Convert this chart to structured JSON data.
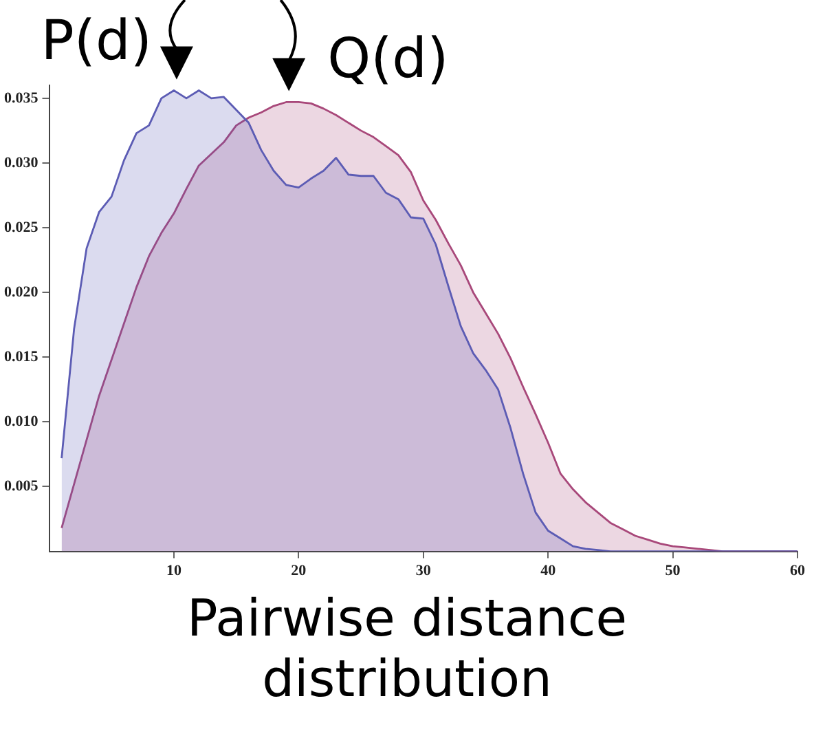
{
  "chart_data": {
    "type": "area",
    "xlabel": "Pairwise distance distribution",
    "x": [
      1,
      2,
      3,
      4,
      5,
      6,
      7,
      8,
      9,
      10,
      11,
      12,
      13,
      14,
      15,
      16,
      17,
      18,
      19,
      20,
      21,
      22,
      23,
      24,
      25,
      26,
      27,
      28,
      29,
      30,
      31,
      32,
      33,
      34,
      35,
      36,
      37,
      38,
      39,
      40,
      41,
      42,
      43,
      44,
      45,
      46,
      47,
      48,
      49,
      50,
      51,
      52,
      53,
      54,
      55,
      56,
      57,
      58,
      59,
      60
    ],
    "series": [
      {
        "name": "P(d)",
        "color": "#5c5cb4",
        "values": [
          0.0072,
          0.0172,
          0.0234,
          0.0262,
          0.0274,
          0.0302,
          0.0323,
          0.0329,
          0.035,
          0.0356,
          0.035,
          0.0356,
          0.035,
          0.0351,
          0.0341,
          0.0331,
          0.031,
          0.0294,
          0.0283,
          0.0281,
          0.0288,
          0.0294,
          0.0304,
          0.0291,
          0.029,
          0.029,
          0.0277,
          0.0272,
          0.0258,
          0.0257,
          0.0237,
          0.0205,
          0.0174,
          0.0153,
          0.014,
          0.0125,
          0.0095,
          0.006,
          0.003,
          0.0016,
          0.001,
          0.0004,
          0.0002,
          0.0001,
          0,
          0,
          0,
          0,
          0,
          0,
          0,
          0,
          0,
          0,
          0,
          0,
          0,
          0,
          0,
          0
        ]
      },
      {
        "name": "Q(d)",
        "color": "#a8487a",
        "values": [
          0.0018,
          0.0052,
          0.0086,
          0.012,
          0.0148,
          0.0176,
          0.0204,
          0.0228,
          0.0246,
          0.0261,
          0.028,
          0.0298,
          0.0307,
          0.0316,
          0.0329,
          0.0335,
          0.0339,
          0.0344,
          0.0347,
          0.0347,
          0.0346,
          0.0342,
          0.0337,
          0.0331,
          0.0325,
          0.032,
          0.0313,
          0.0306,
          0.0293,
          0.0271,
          0.0256,
          0.0238,
          0.0221,
          0.02,
          0.0184,
          0.0168,
          0.0149,
          0.0127,
          0.0106,
          0.0084,
          0.006,
          0.0048,
          0.0038,
          0.003,
          0.0022,
          0.0017,
          0.0012,
          0.0009,
          0.0006,
          0.0004,
          0.0003,
          0.0002,
          0.0001,
          0,
          0,
          0,
          0,
          0,
          0,
          0
        ]
      }
    ],
    "xlim": [
      0,
      60
    ],
    "xticks": [
      10,
      20,
      30,
      40,
      50,
      60
    ],
    "ylim": [
      0,
      0.036
    ],
    "yticks": [
      0.005,
      {
        "value": 0.01,
        "label": "0.010"
      },
      0.015,
      {
        "value": 0.02,
        "label": "0.020"
      },
      0.025,
      {
        "value": 0.03,
        "label": "0.030"
      },
      0.035
    ],
    "grid": false,
    "legend": false,
    "marker": "none",
    "line_style": "solid"
  }
}
